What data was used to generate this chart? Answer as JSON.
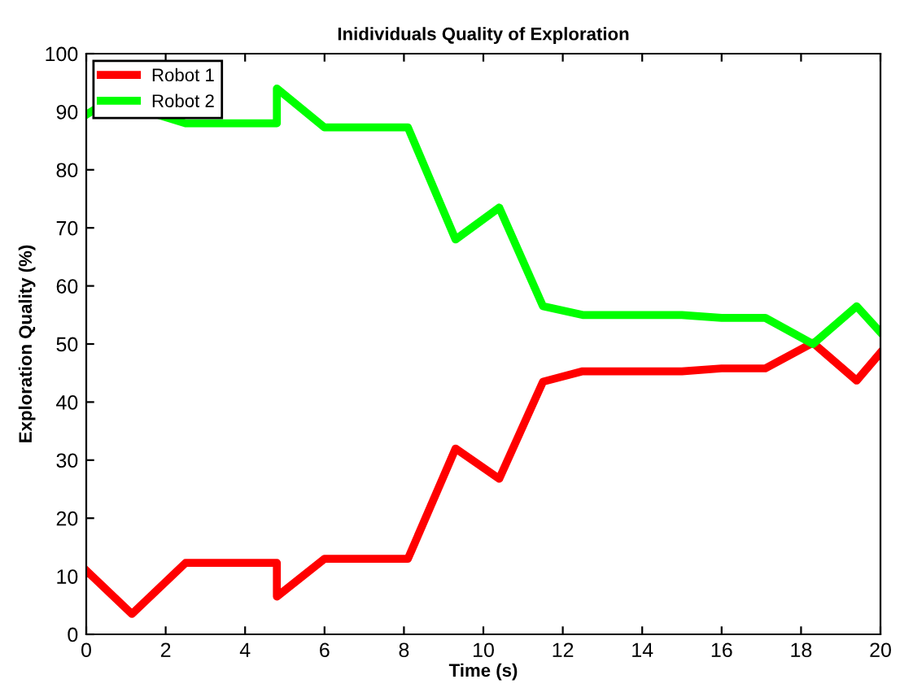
{
  "chart_data": {
    "type": "line",
    "title": "Inidividuals Quality of Exploration",
    "xlabel": "Time (s)",
    "ylabel": "Exploration Quality (%)",
    "xlim": [
      0,
      20
    ],
    "xticks": [
      0,
      2,
      4,
      6,
      8,
      10,
      12,
      14,
      16,
      18,
      20
    ],
    "ylim": [
      0,
      100
    ],
    "yticks": [
      0,
      10,
      20,
      30,
      40,
      50,
      60,
      70,
      80,
      90,
      100
    ],
    "grid": false,
    "legend": "top left",
    "marker": "none",
    "line_style": "solid",
    "series": [
      {
        "name": "Robot 1",
        "color": "#ff0000",
        "x": [
          0,
          1.15,
          2.5,
          4.8,
          4.8,
          6,
          8.1,
          9.3,
          10.4,
          11.5,
          12.5,
          15,
          16,
          17.1,
          18.3,
          19.4,
          20
        ],
        "values": [
          11,
          3.5,
          12.3,
          12.3,
          6.5,
          13,
          13,
          32,
          26.8,
          43.5,
          45.3,
          45.3,
          45.8,
          45.8,
          50.2,
          43.7,
          48.5
        ]
      },
      {
        "name": "Robot 2",
        "color": "#00ff00",
        "x": [
          0,
          0.6,
          2.5,
          4.8,
          4.8,
          6,
          8.1,
          9.3,
          10.4,
          11.5,
          12.5,
          15,
          16,
          17.1,
          18.3,
          19.4,
          20
        ],
        "values": [
          89.5,
          92,
          88,
          88,
          94,
          87.3,
          87.3,
          68,
          73.5,
          56.5,
          55,
          55,
          54.5,
          54.5,
          50,
          56.5,
          52
        ]
      }
    ]
  }
}
